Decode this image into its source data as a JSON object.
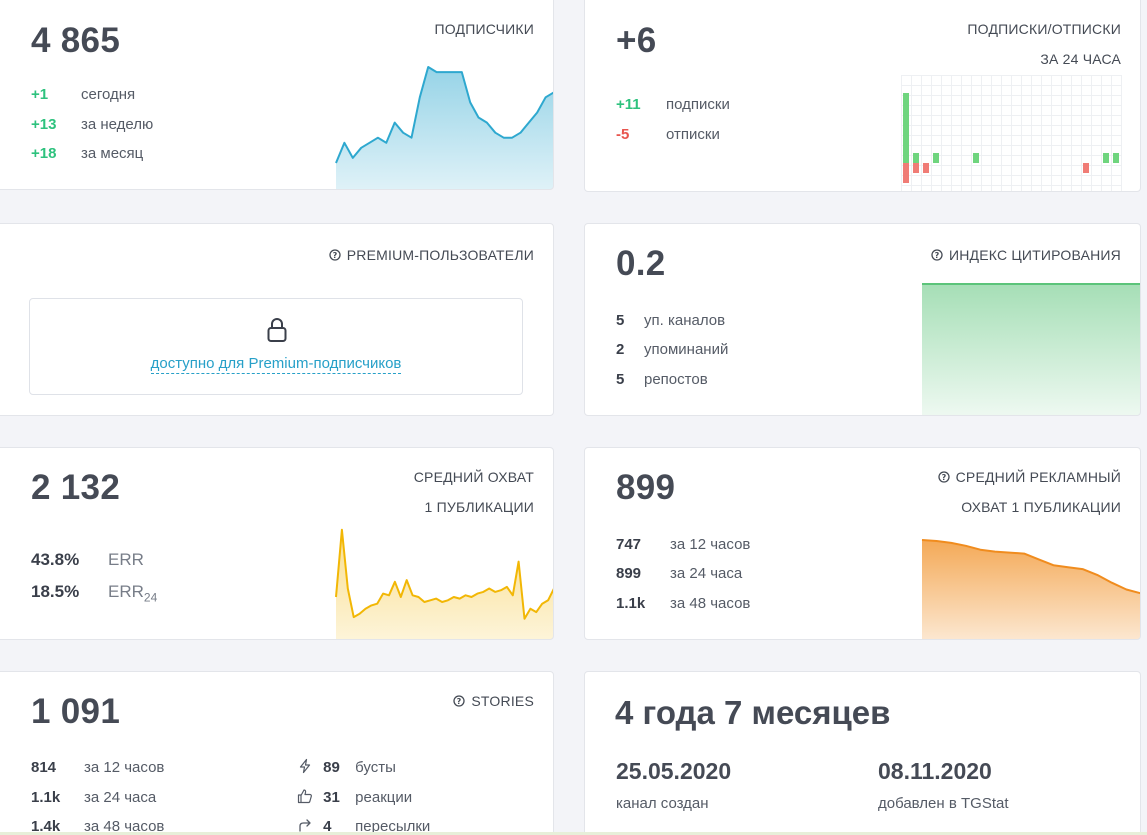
{
  "subscribers": {
    "total": "4 865",
    "title": "ПОДПИСЧИКИ",
    "stats": [
      {
        "value": "+1",
        "label": "сегодня"
      },
      {
        "value": "+13",
        "label": "за неделю"
      },
      {
        "value": "+18",
        "label": "за месяц"
      }
    ],
    "chart_data": {
      "type": "area",
      "values": [
        4847,
        4851,
        4848,
        4850,
        4851,
        4852,
        4851,
        4855,
        4853,
        4852,
        4860,
        4866,
        4865,
        4865,
        4865,
        4865,
        4859,
        4856,
        4855,
        4853,
        4852,
        4852,
        4853,
        4855,
        4857,
        4860,
        4861
      ],
      "color": "#2ea8cf"
    }
  },
  "subs_unsubs": {
    "total": "+6",
    "title_line1": "ПОДПИСКИ/ОТПИСКИ",
    "title_line2": "ЗА 24 ЧАСА",
    "stats": [
      {
        "value": "+11",
        "label": "подписки"
      },
      {
        "value": "-5",
        "label": "отписки"
      }
    ],
    "chart_data": {
      "type": "bar",
      "subscribes": [
        7,
        1,
        0,
        1,
        0,
        0,
        0,
        1,
        0,
        0,
        0,
        0,
        0,
        0,
        0,
        0,
        0,
        0,
        0,
        0,
        1,
        1
      ],
      "unsubscribes": [
        2,
        1,
        1,
        0,
        0,
        0,
        0,
        0,
        0,
        0,
        0,
        0,
        0,
        0,
        0,
        0,
        0,
        0,
        1,
        0,
        0,
        0
      ],
      "colors": {
        "sub": "#6fd57e",
        "unsub": "#f07c76"
      }
    }
  },
  "premium": {
    "title": "PREMIUM-ПОЛЬЗОВАТЕЛИ",
    "icon": "question-circle-icon",
    "locked_text": "доступно для Premium-подписчиков"
  },
  "citation": {
    "total": "0.2",
    "title": "ИНДЕКС ЦИТИРОВАНИЯ",
    "icon": "question-circle-icon",
    "stats": [
      {
        "value": "5",
        "label": "уп. каналов"
      },
      {
        "value": "2",
        "label": "упоминаний"
      },
      {
        "value": "5",
        "label": "репостов"
      }
    ],
    "chart_data": {
      "type": "area",
      "values": [
        0.2,
        0.2
      ],
      "color": "#5cc47a"
    }
  },
  "reach": {
    "total": "2 132",
    "title_line1": "СРЕДНИЙ ОХВАТ",
    "title_line2": "1 ПУБЛИКАЦИИ",
    "err": [
      {
        "value": "43.8%",
        "label": "ERR",
        "sub": ""
      },
      {
        "value": "18.5%",
        "label": "ERR",
        "sub": "24"
      }
    ],
    "chart_data": {
      "type": "area",
      "values": [
        2500,
        6500,
        3000,
        1300,
        1500,
        1800,
        2000,
        2100,
        2700,
        2600,
        3400,
        2500,
        3500,
        2600,
        2500,
        2200,
        2300,
        2400,
        2200,
        2300,
        2500,
        2400,
        2600,
        2500,
        2700,
        2800,
        3000,
        2800,
        2900,
        3100,
        2600,
        4600,
        1200,
        1800,
        1600,
        2100,
        2300,
        3000
      ],
      "color": "#f2b705"
    }
  },
  "ad_reach": {
    "total": "899",
    "title_line1": "СРЕДНИЙ РЕКЛАМНЫЙ",
    "title_line2": "ОХВАТ 1 ПУБЛИКАЦИИ",
    "icon": "question-circle-icon",
    "stats": [
      {
        "value": "747",
        "label": "за 12 часов"
      },
      {
        "value": "899",
        "label": "за 24 часа"
      },
      {
        "value": "1.1k",
        "label": "за 48 часов"
      }
    ],
    "chart_data": {
      "type": "area",
      "values": [
        100,
        99,
        97,
        94,
        90,
        88,
        87,
        86,
        80,
        74,
        72,
        70,
        64,
        56,
        49,
        45
      ],
      "color": "#f08c1e"
    }
  },
  "stories": {
    "total": "1 091",
    "title": "STORIES",
    "icon": "question-circle-icon",
    "left": [
      {
        "value": "814",
        "label": "за 12 часов"
      },
      {
        "value": "1.1k",
        "label": "за 24 часа"
      },
      {
        "value": "1.4k",
        "label": "за 48 часов"
      }
    ],
    "right": [
      {
        "icon": "lightning-icon",
        "value": "89",
        "label": "бусты"
      },
      {
        "icon": "thumbs-up-icon",
        "value": "31",
        "label": "реакции"
      },
      {
        "icon": "share-arrow-icon",
        "value": "4",
        "label": "пересылки"
      }
    ]
  },
  "age": {
    "title": "4 года 7 месяцев",
    "created_date": "25.05.2020",
    "created_label": "канал создан",
    "added_date": "08.11.2020",
    "added_label": "добавлен в TGStat"
  }
}
